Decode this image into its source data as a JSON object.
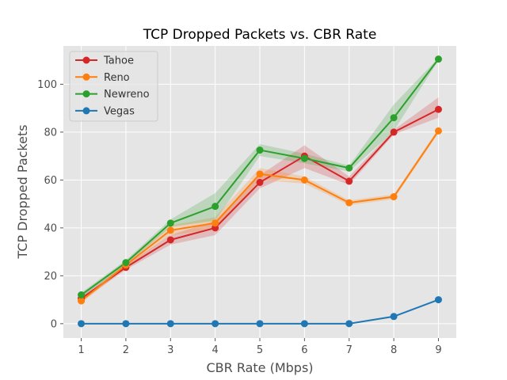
{
  "chart_data": {
    "type": "line",
    "title": "TCP Dropped Packets vs. CBR Rate",
    "xlabel": "CBR Rate (Mbps)",
    "ylabel": "TCP Dropped Packets",
    "x": [
      1,
      2,
      3,
      4,
      5,
      6,
      7,
      8,
      9
    ],
    "xlim": [
      0.6,
      9.4
    ],
    "ylim": [
      -6,
      116
    ],
    "xticks": [
      "1",
      "2",
      "3",
      "4",
      "5",
      "6",
      "7",
      "8",
      "9"
    ],
    "yticks": [
      "0",
      "20",
      "40",
      "60",
      "80",
      "100"
    ],
    "grid": true,
    "legend_position": "top-left",
    "series": [
      {
        "name": "Tahoe",
        "color": "#d62728",
        "values": [
          10.5,
          23.5,
          35,
          40,
          59,
          70,
          59.5,
          80,
          89.5
        ],
        "band_low": [
          9.5,
          22.5,
          33,
          37,
          56.5,
          65,
          58,
          79,
          86
        ],
        "band_high": [
          11.5,
          24.5,
          37,
          43,
          62,
          74.5,
          61.5,
          81,
          94.5
        ]
      },
      {
        "name": "Reno",
        "color": "#ff7f0e",
        "values": [
          9.5,
          24.5,
          39,
          42,
          62.5,
          60,
          50.5,
          53,
          80.5
        ],
        "band_low": [
          8.5,
          23.5,
          37,
          39.5,
          60,
          58.5,
          49.5,
          52,
          79.5
        ],
        "band_high": [
          10.5,
          25.5,
          41,
          44.5,
          65,
          61.5,
          51.5,
          54,
          81.5
        ]
      },
      {
        "name": "Newreno",
        "color": "#2ca02c",
        "values": [
          12,
          25.5,
          42,
          49,
          72.5,
          69,
          65,
          86,
          110.5
        ],
        "band_low": [
          11,
          24.5,
          40.5,
          43,
          70,
          67,
          63.5,
          80.5,
          110
        ],
        "band_high": [
          13,
          26.5,
          43.5,
          54.5,
          75,
          71,
          66,
          91.5,
          111
        ]
      },
      {
        "name": "Vegas",
        "color": "#1f77b4",
        "values": [
          0,
          0,
          0,
          0,
          0,
          0,
          0,
          3,
          10
        ],
        "band_low": [
          0,
          0,
          0,
          0,
          0,
          0,
          0,
          3,
          10
        ],
        "band_high": [
          0,
          0,
          0,
          0,
          0,
          0,
          0,
          3,
          10
        ]
      }
    ]
  }
}
